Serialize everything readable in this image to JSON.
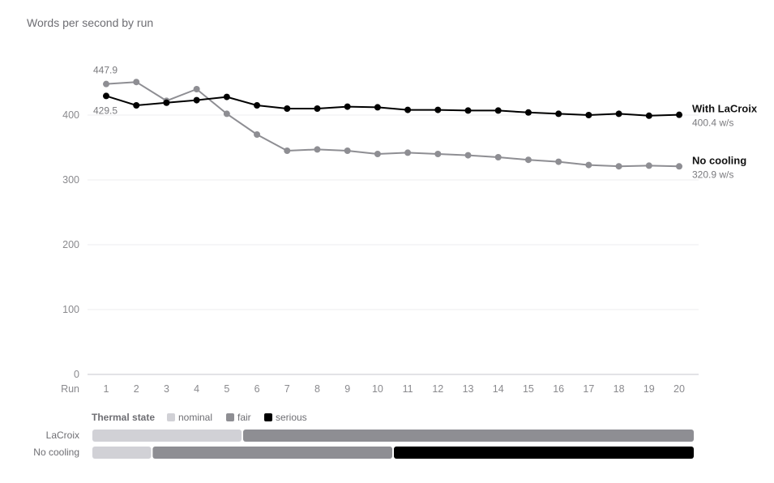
{
  "chart_data": {
    "type": "line",
    "title": "Words per second by run",
    "xlabel": "Run",
    "ylabel": "",
    "ylim": [
      0,
      440
    ],
    "xlim": [
      1,
      20
    ],
    "yticks": [
      0,
      100,
      200,
      300,
      400
    ],
    "grid": true,
    "x": [
      1,
      2,
      3,
      4,
      5,
      6,
      7,
      8,
      9,
      10,
      11,
      12,
      13,
      14,
      15,
      16,
      17,
      18,
      19,
      20
    ],
    "series": [
      {
        "name": "No cooling",
        "color": "#8e8e93",
        "values": [
          447.9,
          451,
          422,
          440,
          402,
          370,
          345,
          347,
          345,
          340,
          342,
          340,
          338,
          335,
          331,
          328,
          323,
          321,
          322,
          320.9
        ],
        "start_label": "447.9",
        "end_label": "No cooling",
        "end_value_label": "320.9 w/s"
      },
      {
        "name": "With LaCroix",
        "color": "#000000",
        "values": [
          429.5,
          415,
          419,
          423,
          428,
          415,
          410,
          410,
          413,
          412,
          408,
          408,
          407,
          407,
          404,
          402,
          400,
          402,
          399,
          400.4
        ],
        "start_label": "429.5",
        "end_label": "With LaCroix",
        "end_value_label": "400.4 w/s"
      }
    ]
  },
  "thermal": {
    "title": "Thermal state",
    "legend": [
      {
        "label": "nominal",
        "color": "#d1d1d6"
      },
      {
        "label": "fair",
        "color": "#8e8e93"
      },
      {
        "label": "serious",
        "color": "#000000"
      }
    ],
    "rows": [
      {
        "label": "LaCroix",
        "segments": [
          {
            "state": "nominal",
            "from": 0.5,
            "to": 5.5
          },
          {
            "state": "fair",
            "from": 5.5,
            "to": 20.5
          }
        ]
      },
      {
        "label": "No cooling",
        "segments": [
          {
            "state": "nominal",
            "from": 0.5,
            "to": 2.5
          },
          {
            "state": "fair",
            "from": 2.5,
            "to": 10.5
          },
          {
            "state": "serious",
            "from": 10.5,
            "to": 20.5
          }
        ]
      }
    ]
  }
}
